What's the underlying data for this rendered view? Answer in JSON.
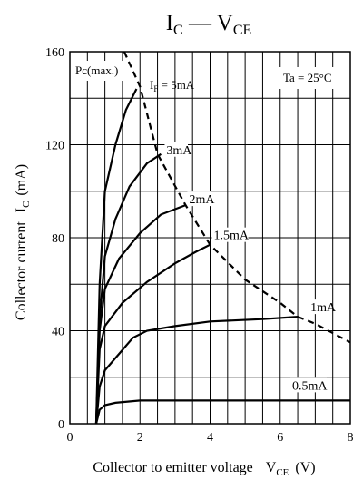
{
  "chart_data": {
    "type": "line",
    "title": {
      "main": "I",
      "main_sub": "C",
      "dash": " — ",
      "tail": "V",
      "tail_sub": "CE"
    },
    "xlabel": {
      "text": "Collector to emitter voltage",
      "sym": "V",
      "sub": "CE",
      "unit": "(V)"
    },
    "ylabel": {
      "text": "Collector current",
      "sym": "I",
      "sub": "C",
      "unit": "(mA)"
    },
    "xlim": [
      0,
      8
    ],
    "ylim": [
      0,
      160
    ],
    "x_ticks": [
      0,
      2,
      4,
      6,
      8
    ],
    "y_ticks": [
      0,
      40,
      80,
      120,
      160
    ],
    "grid": true,
    "annotations": {
      "pc_max": "Pc(max.)",
      "ta": "Ta = 25°C",
      "if_prefix": "I",
      "if_sub": "F",
      "if_suffix": " = 5mA"
    },
    "pc_max_curve": {
      "points": [
        [
          1.55,
          160
        ],
        [
          2.0,
          145
        ],
        [
          2.5,
          116
        ],
        [
          3.3,
          94
        ],
        [
          4.0,
          77
        ],
        [
          5.0,
          62
        ],
        [
          6.0,
          52
        ],
        [
          6.5,
          46
        ],
        [
          7.0,
          43
        ],
        [
          8.0,
          35
        ]
      ]
    },
    "series": [
      {
        "label": "",
        "points": [
          [
            0.75,
            0
          ],
          [
            0.85,
            60
          ],
          [
            1.0,
            100
          ],
          [
            1.3,
            120
          ],
          [
            1.6,
            135
          ],
          [
            1.9,
            144
          ]
        ]
      },
      {
        "label": "3mA",
        "points": [
          [
            0.75,
            0
          ],
          [
            0.85,
            45
          ],
          [
            1.0,
            72
          ],
          [
            1.3,
            88
          ],
          [
            1.7,
            102
          ],
          [
            2.2,
            112
          ],
          [
            2.6,
            116
          ]
        ]
      },
      {
        "label": "2mA",
        "points": [
          [
            0.75,
            0
          ],
          [
            0.85,
            40
          ],
          [
            1.0,
            58
          ],
          [
            1.4,
            71
          ],
          [
            2.0,
            82
          ],
          [
            2.6,
            90
          ],
          [
            3.3,
            94
          ]
        ]
      },
      {
        "label": "1.5mA",
        "points": [
          [
            0.75,
            0
          ],
          [
            0.85,
            32
          ],
          [
            1.0,
            42
          ],
          [
            1.5,
            52
          ],
          [
            2.2,
            61
          ],
          [
            3.0,
            69
          ],
          [
            3.6,
            74
          ],
          [
            4.0,
            77
          ]
        ]
      },
      {
        "label": "1mA",
        "points": [
          [
            0.75,
            0
          ],
          [
            0.85,
            16
          ],
          [
            1.0,
            23
          ],
          [
            1.4,
            30
          ],
          [
            1.8,
            37
          ],
          [
            2.2,
            40
          ],
          [
            3.0,
            42
          ],
          [
            4.0,
            44
          ],
          [
            5.5,
            45
          ],
          [
            6.5,
            46
          ]
        ]
      },
      {
        "label": "0.5mA",
        "points": [
          [
            0.75,
            0
          ],
          [
            0.85,
            6
          ],
          [
            1.0,
            8
          ],
          [
            1.3,
            9
          ],
          [
            2.0,
            10
          ],
          [
            4.0,
            10
          ],
          [
            6.0,
            10
          ],
          [
            8.0,
            10
          ]
        ]
      }
    ]
  }
}
